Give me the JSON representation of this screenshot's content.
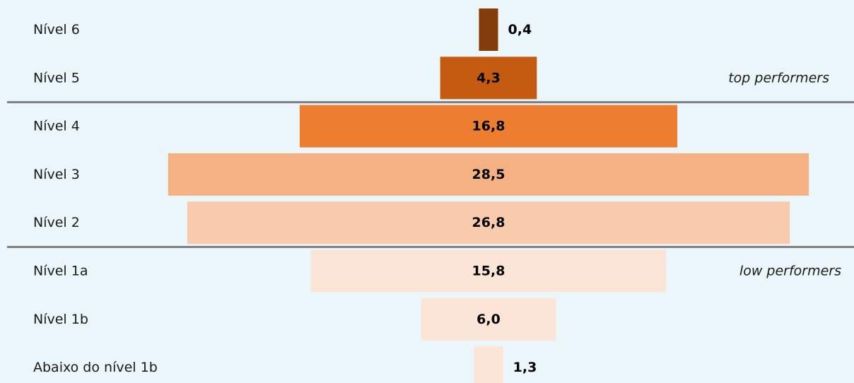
{
  "chart_data": {
    "type": "bar",
    "categories": [
      "Nível 6",
      "Nível 5",
      "Nível 4",
      "Nível 3",
      "Nível 2",
      "Nível 1a",
      "Nível 1b",
      "Abaixo do nível 1b"
    ],
    "values": [
      0.4,
      4.3,
      16.8,
      28.5,
      26.8,
      15.8,
      6.0,
      1.3
    ],
    "value_labels": [
      "0,4",
      "4,3",
      "16,8",
      "28,5",
      "26,8",
      "15,8",
      "6,0",
      "1,3"
    ],
    "colors": [
      "#843c0c",
      "#c55a11",
      "#ed7d31",
      "#f4b183",
      "#f8cbad",
      "#fbe5d6",
      "#fbe5d6",
      "#fbe5d6"
    ],
    "annotations": {
      "top_label": "top performers",
      "low_label": "low performers"
    },
    "divider_color": "#7f7f7f"
  }
}
